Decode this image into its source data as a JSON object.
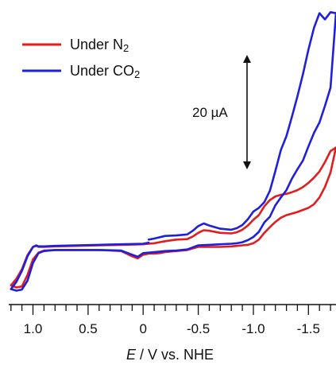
{
  "chart_data": {
    "type": "line",
    "title": "",
    "xlabel": "E / V vs. NHE",
    "xlabel_var": "E",
    "xlabel_rest": " / V vs. NHE",
    "ylabel": "",
    "xlim": [
      1.22,
      -1.75
    ],
    "x_reversed": true,
    "x_ticks": [
      1.0,
      0.5,
      0,
      -0.5,
      -1.0,
      -1.5
    ],
    "x_tick_labels": [
      "1.0",
      "0.5",
      "0",
      "-0.5",
      "-1.0",
      "-1.5"
    ],
    "ylim_uA": [
      -18,
      92
    ],
    "ylim_note": "current in µA; zero-current offset arbitrary (no y axis drawn)",
    "legend_position": "top-left",
    "scale_bar": {
      "label": "20 µA",
      "value_uA": 20
    },
    "series": [
      {
        "name": "Under N₂",
        "name_base": "Under N",
        "name_sub": "2",
        "color": "#e11d1d",
        "forward_x": [
          -0.05,
          -0.1,
          -0.2,
          -0.3,
          -0.4,
          -0.45,
          -0.5,
          -0.55,
          -0.6,
          -0.7,
          -0.8,
          -0.85,
          -0.9,
          -0.95,
          -1.0,
          -1.05,
          -1.1,
          -1.15,
          -1.2,
          -1.25,
          -1.3,
          -1.35,
          -1.4,
          -1.45,
          -1.5,
          -1.55,
          -1.6,
          -1.65,
          -1.7,
          -1.75
        ],
        "forward_y": [
          2.0,
          2.2,
          3.0,
          3.6,
          3.8,
          4.8,
          6.2,
          7.2,
          7.0,
          6.2,
          6.0,
          6.4,
          7.4,
          9.0,
          11.2,
          13.0,
          16.4,
          18.8,
          20.2,
          20.8,
          21.2,
          21.8,
          22.6,
          23.8,
          25.4,
          27.4,
          29.8,
          33.4,
          37.6,
          39.0
        ],
        "reverse_x": [
          -1.75,
          -1.7,
          -1.65,
          -1.6,
          -1.55,
          -1.5,
          -1.45,
          -1.4,
          -1.35,
          -1.3,
          -1.25,
          -1.2,
          -1.15,
          -1.1,
          -1.05,
          -1.0,
          -0.95,
          -0.9,
          -0.85,
          -0.8,
          -0.7,
          -0.6,
          -0.5,
          -0.45,
          -0.4,
          -0.3,
          -0.2,
          -0.15,
          -0.1,
          -0.05,
          0.0,
          0.05,
          0.1,
          0.2,
          0.4,
          0.6,
          0.8,
          0.9,
          0.95,
          1.0,
          1.05,
          1.1,
          1.15,
          1.2
        ],
        "reverse_y": [
          35.2,
          29.4,
          23.8,
          19.8,
          17.2,
          15.8,
          15.0,
          14.2,
          13.6,
          13.0,
          12.0,
          10.4,
          8.4,
          6.2,
          3.6,
          2.2,
          1.6,
          1.4,
          1.2,
          1.0,
          0.8,
          0.8,
          0.8,
          0.2,
          -0.4,
          -0.8,
          -1.2,
          -1.6,
          -1.8,
          -1.8,
          -2.2,
          -3.6,
          -2.8,
          -0.8,
          -0.4,
          -0.4,
          -0.4,
          -0.6,
          -1.4,
          -4.0,
          -10.0,
          -14.4,
          -14.8,
          -14.0
        ],
        "return_x": [
          1.2,
          1.15,
          1.1,
          1.05,
          1.0,
          0.97,
          0.95,
          0.9,
          0.8,
          0.6,
          0.4,
          0.2,
          0.0,
          -0.05
        ],
        "return_y": [
          -14.0,
          -11.4,
          -7.8,
          -2.4,
          0.8,
          1.2,
          0.8,
          0.8,
          1.0,
          1.2,
          1.4,
          1.6,
          1.8,
          2.0
        ]
      },
      {
        "name": "Under CO₂",
        "name_base": "Under CO",
        "name_sub": "2",
        "color": "#1f1fdd",
        "forward_x": [
          -0.05,
          -0.1,
          -0.2,
          -0.3,
          -0.4,
          -0.45,
          -0.5,
          -0.55,
          -0.6,
          -0.7,
          -0.8,
          -0.85,
          -0.9,
          -0.95,
          -1.0,
          -1.05,
          -1.1,
          -1.15,
          -1.2,
          -1.25,
          -1.3,
          -1.35,
          -1.4,
          -1.45,
          -1.5,
          -1.55,
          -1.6,
          -1.65,
          -1.7,
          -1.75
        ],
        "forward_y": [
          3.6,
          4.0,
          5.0,
          5.2,
          5.6,
          7.0,
          8.8,
          9.8,
          9.0,
          7.8,
          7.4,
          8.0,
          9.2,
          11.4,
          14.4,
          15.8,
          18.0,
          22.4,
          30.0,
          38.0,
          43.4,
          50.8,
          58.6,
          67.2,
          76.6,
          85.0,
          90.6,
          88.2,
          91.0,
          90.6
        ],
        "reverse_x": [
          -1.75,
          -1.7,
          -1.65,
          -1.6,
          -1.55,
          -1.5,
          -1.45,
          -1.4,
          -1.35,
          -1.3,
          -1.25,
          -1.2,
          -1.15,
          -1.1,
          -1.05,
          -1.0,
          -0.95,
          -0.9,
          -0.85,
          -0.8,
          -0.7,
          -0.6,
          -0.5,
          -0.45,
          -0.4,
          -0.3,
          -0.2,
          -0.15,
          -0.1,
          -0.05,
          0.0,
          0.05,
          0.1,
          0.2,
          0.4,
          0.6,
          0.8,
          0.9,
          0.95,
          1.0,
          1.05,
          1.1,
          1.15,
          1.2
        ],
        "reverse_y": [
          72.0,
          62.0,
          55.0,
          48.6,
          44.6,
          39.4,
          34.0,
          30.6,
          27.0,
          22.6,
          19.8,
          16.8,
          12.4,
          10.2,
          6.6,
          4.6,
          3.4,
          2.6,
          2.2,
          2.0,
          1.8,
          1.6,
          1.4,
          0.6,
          -0.2,
          -0.6,
          -0.8,
          -1.0,
          -1.2,
          -1.4,
          -1.6,
          -3.0,
          -2.2,
          -0.6,
          -0.4,
          -0.4,
          -0.4,
          -0.8,
          -1.6,
          -5.4,
          -12.2,
          -15.6,
          -16.0,
          -15.4
        ],
        "return_x": [
          1.2,
          1.15,
          1.1,
          1.05,
          1.0,
          0.97,
          0.95,
          0.9,
          0.8,
          0.6,
          0.4,
          0.2,
          0.0,
          -0.05
        ],
        "return_y": [
          -15.4,
          -12.6,
          -8.4,
          -2.8,
          0.8,
          1.4,
          1.0,
          1.0,
          1.2,
          1.4,
          1.6,
          1.8,
          2.0,
          2.4
        ]
      }
    ]
  }
}
